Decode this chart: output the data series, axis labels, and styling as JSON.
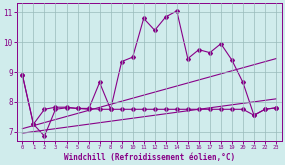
{
  "x": [
    0,
    1,
    2,
    3,
    4,
    5,
    6,
    7,
    8,
    9,
    10,
    11,
    12,
    13,
    14,
    15,
    16,
    17,
    18,
    19,
    20,
    21,
    22,
    23
  ],
  "line1": [
    8.9,
    7.25,
    6.85,
    7.75,
    7.8,
    7.78,
    7.75,
    8.65,
    7.75,
    9.35,
    9.5,
    10.8,
    10.4,
    10.85,
    11.05,
    9.45,
    9.75,
    9.65,
    9.95,
    9.4,
    8.65,
    7.55,
    7.75,
    7.8
  ],
  "line2": [
    8.9,
    7.25,
    7.75,
    7.82,
    7.82,
    7.78,
    7.78,
    7.75,
    7.75,
    7.75,
    7.75,
    7.75,
    7.75,
    7.75,
    7.75,
    7.75,
    7.75,
    7.75,
    7.75,
    7.75,
    7.75,
    7.55,
    7.75,
    7.8
  ],
  "trend1_x": [
    0,
    23
  ],
  "trend1_y": [
    7.1,
    9.45
  ],
  "trend2_x": [
    0,
    23
  ],
  "trend2_y": [
    6.95,
    8.1
  ],
  "color": "#880088",
  "bg_color": "#d0ecec",
  "grid_color": "#99bbbb",
  "xlabel": "Windchill (Refroidissement éolien,°C)",
  "ylim": [
    6.7,
    11.3
  ],
  "xlim": [
    -0.5,
    23.5
  ],
  "yticks": [
    7,
    8,
    9,
    10,
    11
  ],
  "xticks": [
    0,
    1,
    2,
    3,
    4,
    5,
    6,
    7,
    8,
    9,
    10,
    11,
    12,
    13,
    14,
    15,
    16,
    17,
    18,
    19,
    20,
    21,
    22,
    23
  ]
}
